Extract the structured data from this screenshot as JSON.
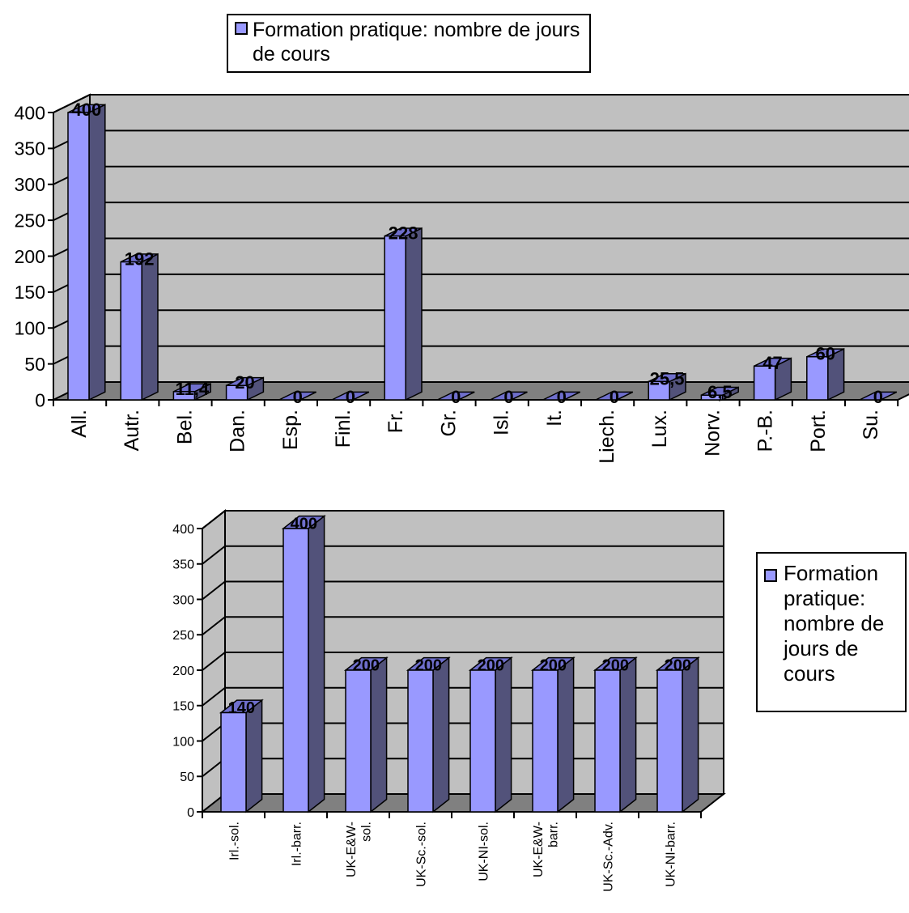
{
  "legend": {
    "label": "Formation pratique: nombre de jours de cours"
  },
  "colors": {
    "bar_front": "#9999ff",
    "bar_side": "#52527a",
    "bar_top": "#6f6fcc",
    "wall": "#c0c0c0",
    "floor": "#808080"
  },
  "chart_data": [
    {
      "type": "bar",
      "categories": [
        "All.",
        "Autr.",
        "Bel.",
        "Dan.",
        "Esp.",
        "Finl.",
        "Fr.",
        "Gr.",
        "Isl.",
        "It.",
        "Liech.",
        "Lux.",
        "Norv.",
        "P.-B.",
        "Port.",
        "Su."
      ],
      "series": [
        {
          "name": "Formation pratique: nombre de jours de cours",
          "values": [
            400,
            192,
            11.4,
            20,
            0,
            0,
            228,
            0,
            0,
            0,
            0,
            25.5,
            6.5,
            47,
            60,
            0
          ]
        }
      ],
      "data_labels": [
        "400",
        "192",
        "11,4",
        "20",
        "0",
        "0",
        "228",
        "0",
        "0",
        "0",
        "0",
        "25,5",
        "6,5",
        "47",
        "60",
        "0"
      ],
      "yticks": [
        "0",
        "50",
        "100",
        "150",
        "200",
        "250",
        "300",
        "350",
        "400"
      ],
      "ylim": [
        0,
        400
      ],
      "grid": true,
      "legend_position": "top"
    },
    {
      "type": "bar",
      "categories": [
        "Irl.-sol.",
        "Irl.-barr.",
        "UK-E&W-sol.",
        "UK-Sc.-sol.",
        "UK-NI-sol.",
        "UK-E&W-barr.",
        "UK-Sc.-Adv.",
        "UK-NI-barr."
      ],
      "category_lines": [
        [
          "Irl.-sol."
        ],
        [
          "Irl.-barr."
        ],
        [
          "UK-E&W-",
          "sol."
        ],
        [
          "UK-Sc.-sol."
        ],
        [
          "UK-NI-sol."
        ],
        [
          "UK-E&W-",
          "barr."
        ],
        [
          "UK-Sc.-Adv."
        ],
        [
          "UK-NI-barr."
        ]
      ],
      "series": [
        {
          "name": "Formation pratique: nombre de jours de cours",
          "values": [
            140,
            400,
            200,
            200,
            200,
            200,
            200,
            200
          ]
        }
      ],
      "data_labels": [
        "140",
        "400",
        "200",
        "200",
        "200",
        "200",
        "200",
        "200"
      ],
      "yticks": [
        "0",
        "50",
        "100",
        "150",
        "200",
        "250",
        "300",
        "350",
        "400"
      ],
      "ylim": [
        0,
        400
      ],
      "grid": true,
      "legend_position": "right"
    }
  ]
}
